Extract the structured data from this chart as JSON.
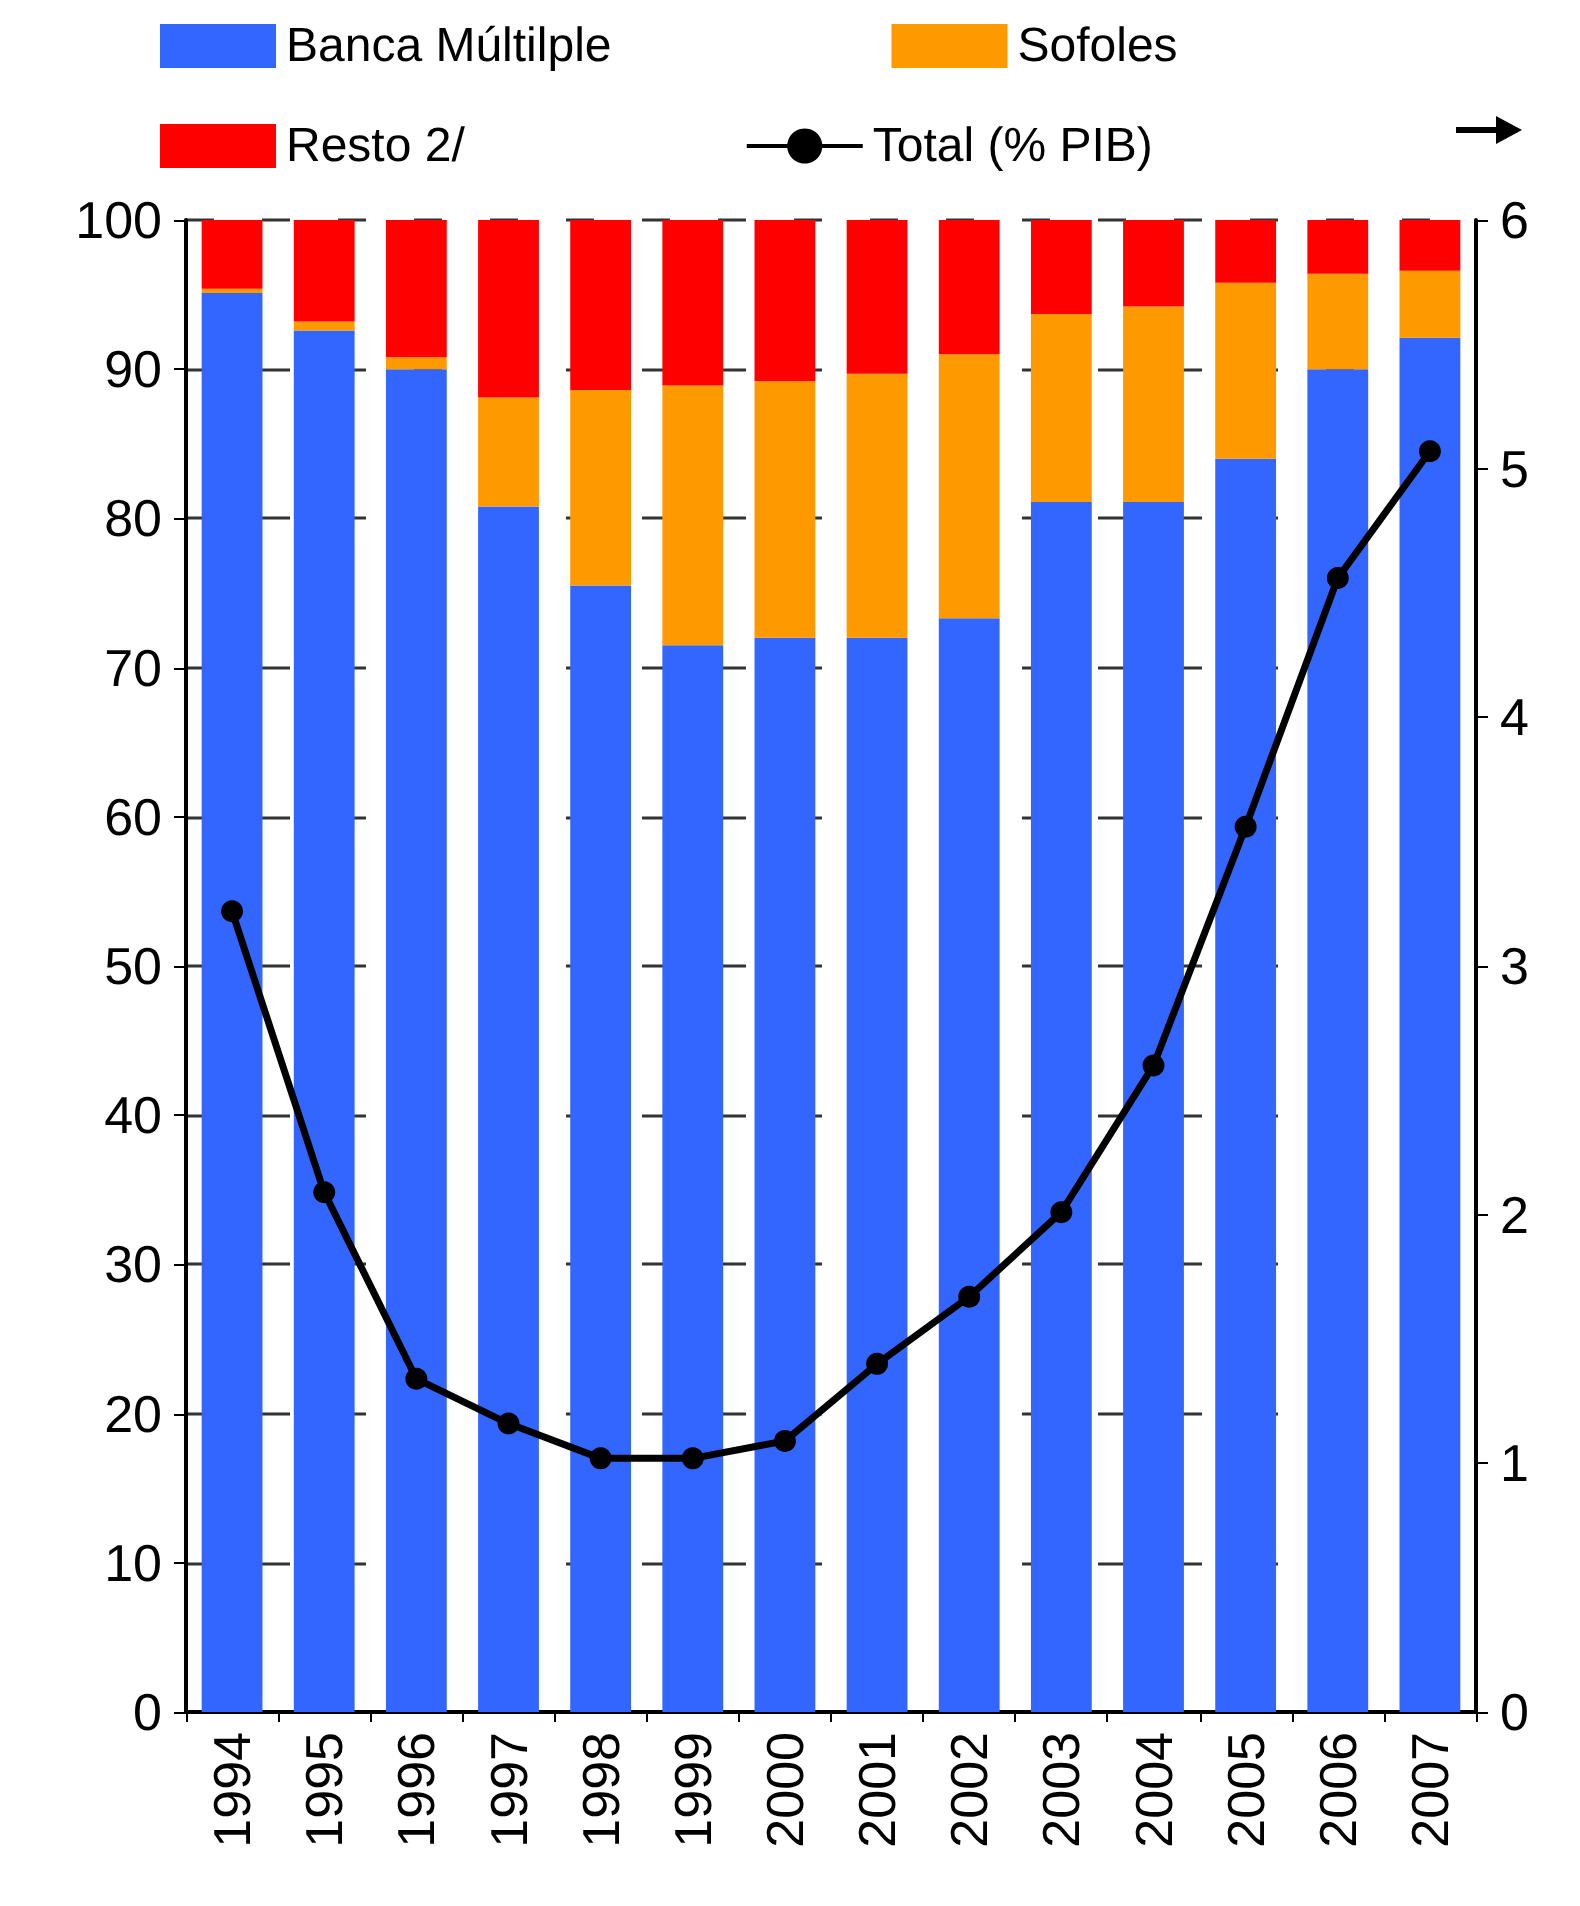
{
  "chart_data": {
    "type": "bar",
    "stacked": true,
    "categories": [
      "1994",
      "1995",
      "1996",
      "1997",
      "1998",
      "1999",
      "2000",
      "2001",
      "2002",
      "2003",
      "2004",
      "2005",
      "2006",
      "2007"
    ],
    "series": [
      {
        "name": "Banca Múltilple",
        "color": "#3366ff",
        "values": [
          95.1,
          92.6,
          90.0,
          80.8,
          75.5,
          71.5,
          72.0,
          72.0,
          73.3,
          81.1,
          81.1,
          84.0,
          90.0,
          92.1
        ]
      },
      {
        "name": "Sofoles",
        "color": "#ff9900",
        "values": [
          0.3,
          0.6,
          0.8,
          7.3,
          13.1,
          17.4,
          17.2,
          17.7,
          17.7,
          12.6,
          13.1,
          11.8,
          6.4,
          4.5
        ]
      },
      {
        "name": "Resto 2/",
        "color": "#ff0000",
        "values": [
          4.6,
          6.8,
          9.2,
          11.9,
          11.4,
          11.1,
          10.8,
          10.3,
          9.0,
          6.3,
          5.8,
          4.2,
          3.6,
          3.4
        ]
      },
      {
        "name": "Total (% PIB)",
        "type": "line",
        "axis": "y2",
        "color": "#000000",
        "marker": "circle",
        "values": [
          3.22,
          2.09,
          1.34,
          1.16,
          1.02,
          1.02,
          1.09,
          1.4,
          1.67,
          2.01,
          2.6,
          3.56,
          4.56,
          5.07
        ]
      }
    ],
    "ylim": [
      0,
      100
    ],
    "yticks": [
      0,
      10,
      20,
      30,
      40,
      50,
      60,
      70,
      80,
      90,
      100
    ],
    "y2lim": [
      0,
      6
    ],
    "y2ticks": [
      0,
      1,
      2,
      3,
      4,
      5,
      6
    ],
    "grid": "y",
    "legend": "top"
  }
}
